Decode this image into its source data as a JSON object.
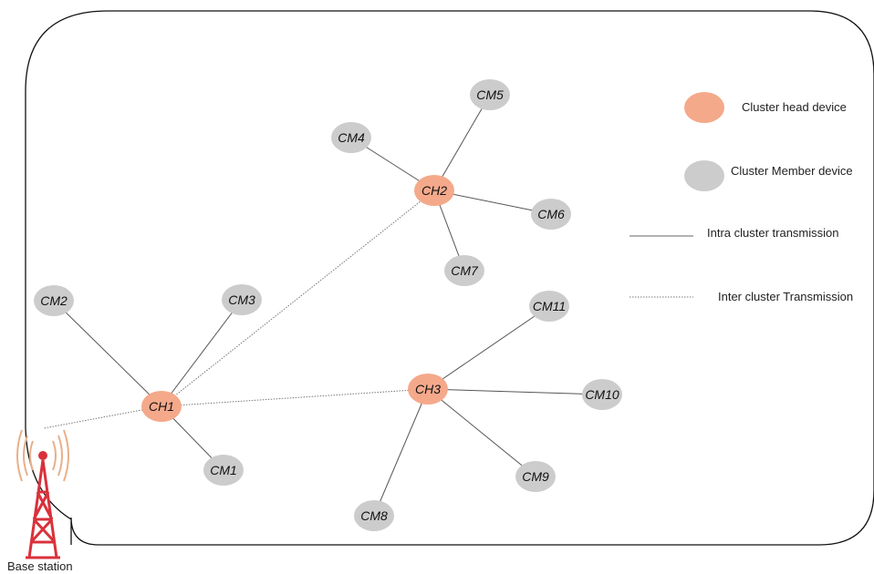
{
  "diagram": {
    "cluster_heads": [
      {
        "id": "CH1",
        "label": "CH1"
      },
      {
        "id": "CH2",
        "label": "CH2"
      },
      {
        "id": "CH3",
        "label": "CH3"
      }
    ],
    "cluster_members": [
      {
        "id": "CM1",
        "label": "CM1",
        "head": "CH1"
      },
      {
        "id": "CM2",
        "label": "CM2",
        "head": "CH1"
      },
      {
        "id": "CM3",
        "label": "CM3",
        "head": "CH1"
      },
      {
        "id": "CM4",
        "label": "CM4",
        "head": "CH2"
      },
      {
        "id": "CM5",
        "label": "CM5",
        "head": "CH2"
      },
      {
        "id": "CM6",
        "label": "CM6",
        "head": "CH2"
      },
      {
        "id": "CM7",
        "label": "CM7",
        "head": "CH2"
      },
      {
        "id": "CM8",
        "label": "CM8",
        "head": "CH3"
      },
      {
        "id": "CM9",
        "label": "CM9",
        "head": "CH3"
      },
      {
        "id": "CM10",
        "label": "CM10",
        "head": "CH3"
      },
      {
        "id": "CM11",
        "label": "CM11",
        "head": "CH3"
      }
    ],
    "inter_links": [
      [
        "CH1",
        "CH2"
      ],
      [
        "CH1",
        "CH3"
      ],
      [
        "CH1",
        "BS"
      ]
    ],
    "base_station": {
      "label": "Base station"
    }
  },
  "legend": {
    "head": "Cluster head device",
    "member": "Cluster Member device",
    "intra": "Intra cluster transmission",
    "inter": "Inter cluster Transmission"
  },
  "colors": {
    "head_fill": "#f4a98a",
    "member_fill": "#cccccc",
    "tower": "#d9313b",
    "signal": "#e8b089"
  }
}
